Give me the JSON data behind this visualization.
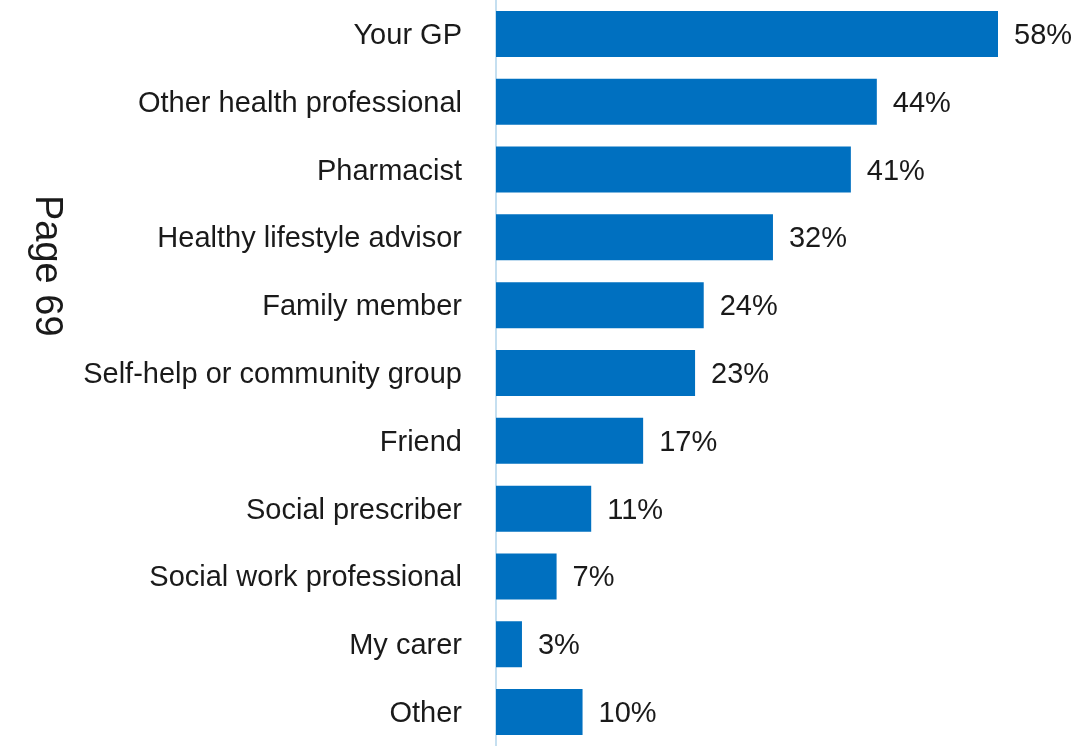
{
  "chart_data": {
    "type": "bar",
    "orientation": "horizontal",
    "categories": [
      "Your GP",
      "Other health professional",
      "Pharmacist",
      "Healthy lifestyle advisor",
      "Family member",
      "Self-help or community group",
      "Friend",
      "Social prescriber",
      "Social work professional",
      "My carer",
      "Other"
    ],
    "values": [
      58,
      44,
      41,
      32,
      24,
      23,
      17,
      11,
      7,
      3,
      10
    ],
    "value_labels": [
      "58%",
      "44%",
      "41%",
      "32%",
      "24%",
      "23%",
      "17%",
      "11%",
      "7%",
      "3%",
      "10%"
    ],
    "color": "#0070c0",
    "annotations": [
      "Page 69"
    ]
  }
}
